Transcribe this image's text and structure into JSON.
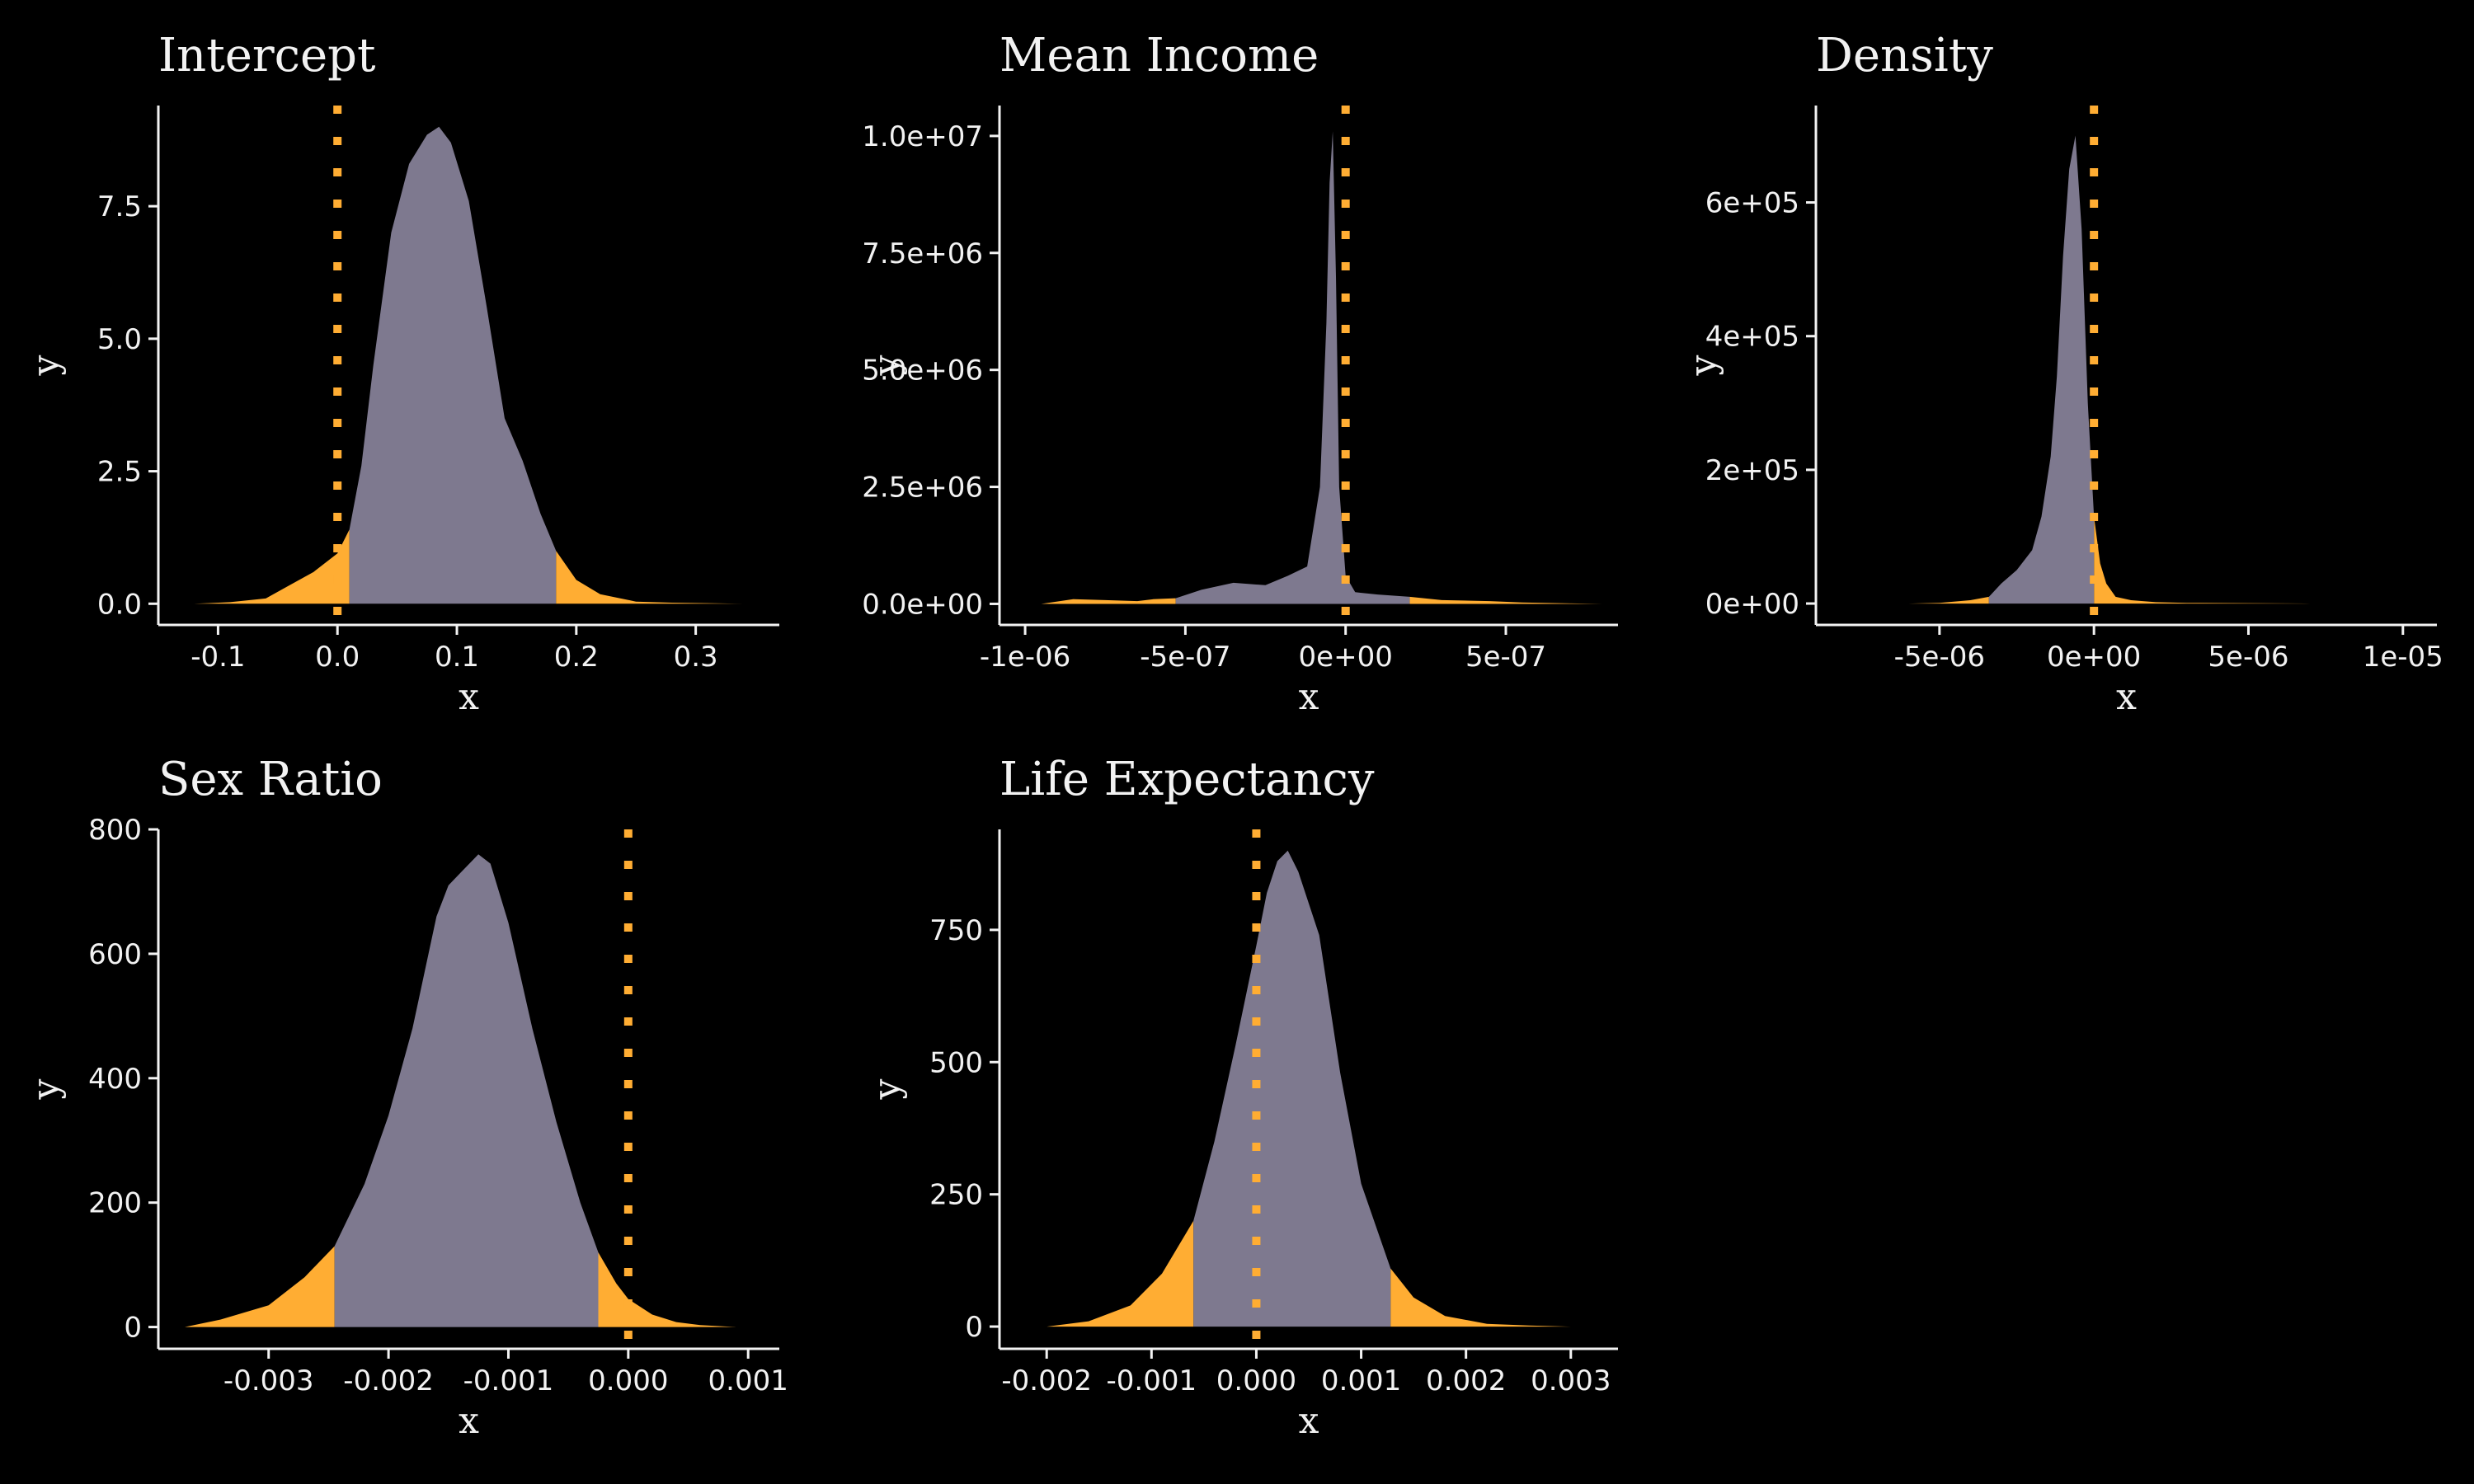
{
  "figure": {
    "background": "#000000",
    "text_color": "#f2f2f2"
  },
  "colors": {
    "interval": "#7e798f",
    "tail": "#ffad33",
    "reference_line": "#ffad33"
  },
  "chart_data": [
    {
      "type": "area",
      "title": "Intercept",
      "xlabel": "x",
      "ylabel": "y",
      "xlim": [
        -0.15,
        0.37
      ],
      "ylim": [
        -0.4,
        9.4
      ],
      "x_ticks": [
        -0.1,
        0.0,
        0.1,
        0.2,
        0.3
      ],
      "x_tick_labels": [
        "-0.1",
        "0.0",
        "0.1",
        "0.2",
        "0.3"
      ],
      "y_ticks": [
        0.0,
        2.5,
        5.0,
        7.5
      ],
      "y_tick_labels": [
        "0.0",
        "2.5",
        "5.0",
        "7.5"
      ],
      "reference_x": 0,
      "interval": [
        0.01,
        0.183
      ],
      "x": [
        -0.12,
        -0.09,
        -0.06,
        -0.04,
        -0.02,
        0.0,
        0.01,
        0.02,
        0.03,
        0.045,
        0.06,
        0.075,
        0.085,
        0.095,
        0.11,
        0.125,
        0.14,
        0.155,
        0.17,
        0.183,
        0.2,
        0.22,
        0.25,
        0.28,
        0.31,
        0.34
      ],
      "y": [
        0.0,
        0.03,
        0.1,
        0.35,
        0.6,
        0.95,
        1.4,
        2.6,
        4.5,
        7.0,
        8.3,
        8.85,
        9.0,
        8.7,
        7.6,
        5.6,
        3.5,
        2.7,
        1.7,
        1.0,
        0.45,
        0.18,
        0.04,
        0.02,
        0.01,
        0.0
      ]
    },
    {
      "type": "area",
      "title": "Mean Income",
      "xlabel": "x",
      "ylabel": "y",
      "xlim": [
        -1.08e-06,
        8.5e-07
      ],
      "ylim": [
        -450000.0,
        10650000.0
      ],
      "x_ticks": [
        -1e-06,
        -5e-07,
        0,
        5e-07
      ],
      "x_tick_labels": [
        "-1e-06",
        "-5e-07",
        "0e+00",
        "5e-07"
      ],
      "y_ticks": [
        0,
        2500000,
        5000000,
        7500000,
        10000000
      ],
      "y_tick_labels": [
        "0.0e+00",
        "2.5e+06",
        "5.0e+06",
        "7.5e+06",
        "1.0e+07"
      ],
      "reference_x": 0,
      "interval": [
        -5.3e-07,
        2e-07
      ],
      "x": [
        -9.5e-07,
        -8.5e-07,
        -7.5e-07,
        -6.5e-07,
        -6e-07,
        -5.3e-07,
        -4.5e-07,
        -3.5e-07,
        -2.5e-07,
        -1.8e-07,
        -1.2e-07,
        -8e-08,
        -6e-08,
        -5e-08,
        -4e-08,
        -3e-08,
        -2e-08,
        0,
        3e-08,
        1e-07,
        2e-07,
        3e-07,
        4.5e-07,
        5.5e-07,
        7e-07,
        8e-07
      ],
      "y": [
        0,
        100000,
        80000,
        60000,
        100000,
        120000,
        300000,
        450000,
        400000,
        600000,
        800000,
        2500000,
        6000000,
        9000000,
        10100000,
        7000000,
        2500000,
        600000,
        250000,
        200000,
        150000,
        80000,
        60000,
        30000,
        10000,
        0
      ]
    },
    {
      "type": "area",
      "title": "Density",
      "xlabel": "x",
      "ylabel": "y",
      "xlim": [
        -9e-06,
        1.11e-05
      ],
      "ylim": [
        -32000.0,
        745000.0
      ],
      "x_ticks": [
        -5e-06,
        0,
        5e-06,
        1e-05
      ],
      "x_tick_labels": [
        "-5e-06",
        "0e+00",
        "5e-06",
        "1e-05"
      ],
      "y_ticks": [
        0,
        200000,
        400000,
        600000
      ],
      "y_tick_labels": [
        "0e+00",
        "2e+05",
        "4e+05",
        "6e+05"
      ],
      "reference_x": 0,
      "interval": [
        -3.4e-06,
        0
      ],
      "x": [
        -8e-06,
        -6e-06,
        -5e-06,
        -4e-06,
        -3.4e-06,
        -3e-06,
        -2.5e-06,
        -2e-06,
        -1.7e-06,
        -1.4e-06,
        -1.2e-06,
        -1e-06,
        -8e-07,
        -6e-07,
        -4e-07,
        -2e-07,
        0,
        2e-07,
        4e-07,
        7e-07,
        1.2e-06,
        2e-06,
        3e-06,
        5e-06,
        7e-06,
        1e-05
      ],
      "y": [
        0,
        0,
        1000,
        5000,
        10000,
        30000,
        50000,
        80000,
        130000,
        220000,
        340000,
        520000,
        650000,
        700000,
        560000,
        300000,
        130000,
        60000,
        30000,
        10000,
        5000,
        2000,
        1000,
        500,
        0,
        0
      ]
    },
    {
      "type": "area",
      "title": "Sex Ratio",
      "xlabel": "x",
      "ylabel": "y",
      "xlim": [
        -0.00392,
        0.00126
      ],
      "ylim": [
        -35,
        800
      ],
      "x_ticks": [
        -0.003,
        -0.002,
        -0.001,
        0.0,
        0.001
      ],
      "x_tick_labels": [
        "-0.003",
        "-0.002",
        "-0.001",
        "0.000",
        "0.001"
      ],
      "y_ticks": [
        0,
        200,
        400,
        600,
        800
      ],
      "y_tick_labels": [
        "0",
        "200",
        "400",
        "600",
        "800"
      ],
      "reference_x": 0,
      "interval": [
        -0.00245,
        -0.00025
      ],
      "x": [
        -0.0037,
        -0.0034,
        -0.003,
        -0.0027,
        -0.00245,
        -0.0022,
        -0.002,
        -0.0018,
        -0.0016,
        -0.0015,
        -0.0014,
        -0.00125,
        -0.00115,
        -0.001,
        -0.0008,
        -0.0006,
        -0.0004,
        -0.00025,
        -0.0001,
        0.0,
        0.0002,
        0.0004,
        0.0006,
        0.0009
      ],
      "y": [
        0,
        12,
        35,
        80,
        130,
        230,
        340,
        480,
        660,
        710,
        730,
        760,
        745,
        650,
        480,
        330,
        200,
        120,
        70,
        45,
        20,
        8,
        3,
        0
      ]
    },
    {
      "type": "area",
      "title": "Life Expectancy",
      "xlabel": "x",
      "ylabel": "y",
      "xlim": [
        -0.00245,
        0.00345
      ],
      "ylim": [
        -42,
        940
      ],
      "x_ticks": [
        -0.002,
        -0.001,
        0.0,
        0.001,
        0.002,
        0.003
      ],
      "x_tick_labels": [
        "-0.002",
        "-0.001",
        "0.000",
        "0.001",
        "0.002",
        "0.003"
      ],
      "y_ticks": [
        0,
        250,
        500,
        750
      ],
      "y_tick_labels": [
        "0",
        "250",
        "500",
        "750"
      ],
      "reference_x": 0,
      "interval": [
        -0.0006,
        0.00128
      ],
      "x": [
        -0.002,
        -0.0016,
        -0.0012,
        -0.0009,
        -0.0006,
        -0.0004,
        -0.0002,
        0.0,
        0.0001,
        0.0002,
        0.0003,
        0.0004,
        0.0005,
        0.0006,
        0.0008,
        0.001,
        0.00128,
        0.0015,
        0.0018,
        0.0022,
        0.0026,
        0.003
      ],
      "y": [
        0,
        10,
        40,
        100,
        200,
        350,
        530,
        720,
        820,
        880,
        900,
        860,
        800,
        740,
        480,
        270,
        110,
        55,
        20,
        5,
        2,
        0
      ]
    }
  ]
}
